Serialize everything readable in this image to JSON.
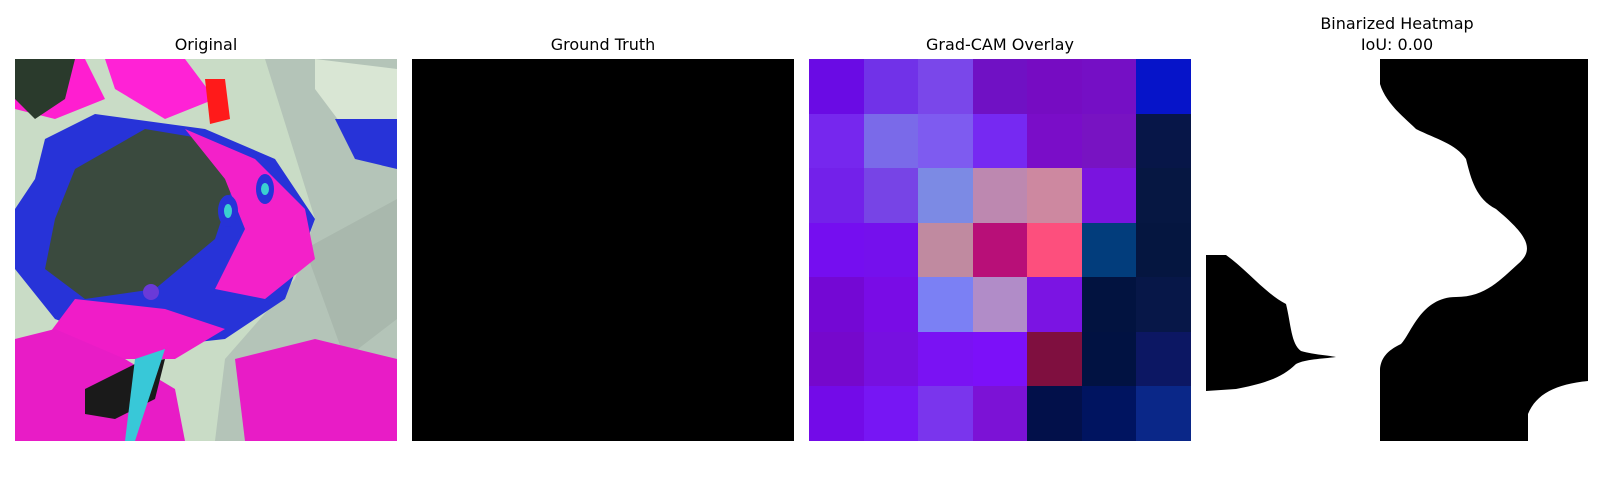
{
  "panels": [
    {
      "title": "Original"
    },
    {
      "title": "Ground Truth"
    },
    {
      "title": "Grad-CAM Overlay"
    },
    {
      "title": "Binarized Heatmap",
      "subtitle": "IoU: 0.00"
    }
  ],
  "gradcam_grid": [
    [
      "#6a0be4",
      "#7132e8",
      "#7a47ea",
      "#7011c4",
      "#760cc2",
      "#750fc5",
      "#0614c9"
    ],
    [
      "#7627ee",
      "#7a6ae9",
      "#7e5bf0",
      "#7629f2",
      "#7a0dc8",
      "#7813c2",
      "#071648"
    ],
    [
      "#7321ea",
      "#7744e6",
      "#7c8ae4",
      "#bd88b0",
      "#cd88a0",
      "#7a14df",
      "#061742"
    ],
    [
      "#750ef0",
      "#7510ed",
      "#c08aa0",
      "#b80f78",
      "#fd4f7d",
      "#023d7c",
      "#051640"
    ],
    [
      "#7408d4",
      "#790ce6",
      "#7b80f4",
      "#b18cc8",
      "#7b14e3",
      "#021340",
      "#071748"
    ],
    [
      "#7608cc",
      "#7710e0",
      "#7a12f3",
      "#7c10f9",
      "#7f0f3f",
      "#011242",
      "#0c1763"
    ],
    [
      "#730be8",
      "#7716f4",
      "#7a35ed",
      "#7c12d6",
      "#02104a",
      "#001460",
      "#0a2788"
    ]
  ],
  "colors": {
    "background": "#ffffff",
    "ground_truth": "#000000",
    "mask_fg": "#ffffff",
    "mask_bg": "#000000"
  }
}
